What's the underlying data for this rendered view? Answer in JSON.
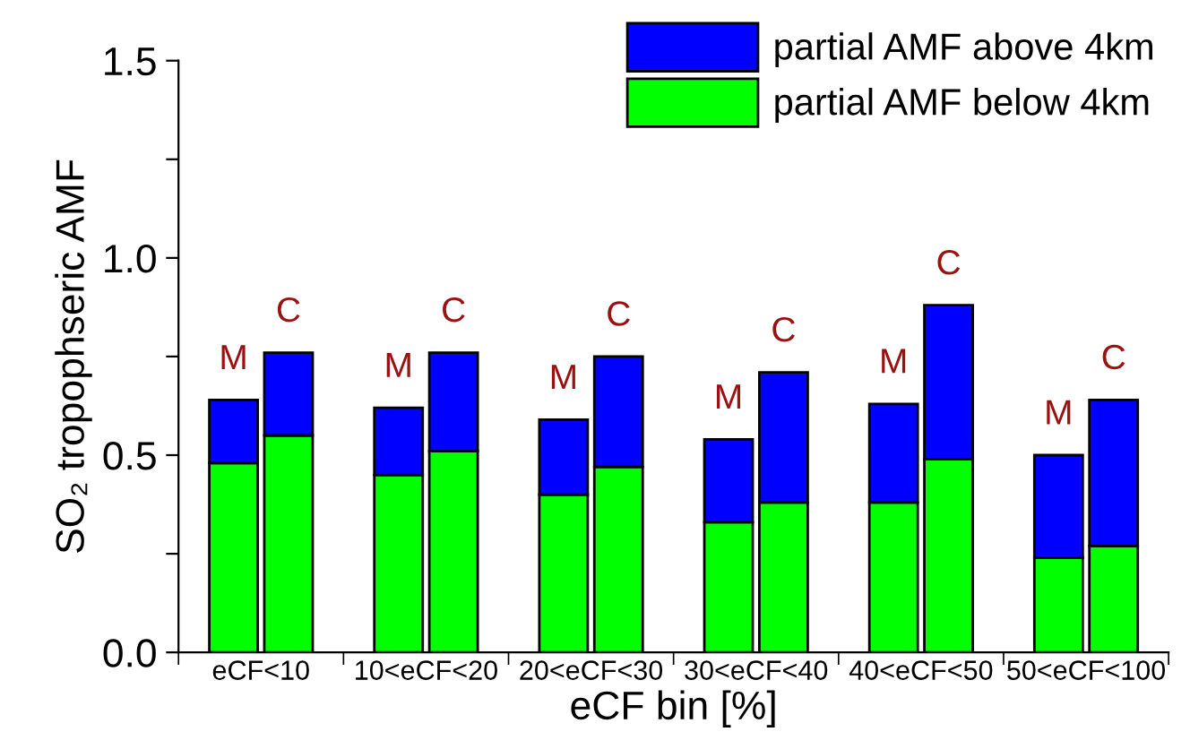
{
  "chart_data": {
    "type": "bar",
    "stacked": true,
    "xlabel": "eCF bin [%]",
    "ylabel": "SO₂ tropophseric AMF",
    "categories": [
      "eCF<10",
      null,
      null,
      "10<eCF<20",
      null,
      null,
      "20<eCF<30",
      null,
      null,
      "30<eCF<40",
      null,
      null,
      "40<eCF<50",
      null,
      null,
      "50<eCF<100",
      null,
      null
    ],
    "series": [
      {
        "name": "partial AMF below 4km",
        "color": "#00ff00",
        "values": [
          0.48,
          0.55,
          null,
          0.45,
          0.51,
          null,
          0.4,
          0.47,
          null,
          0.33,
          0.38,
          null,
          0.38,
          0.49,
          null,
          0.24,
          0.27,
          null
        ]
      },
      {
        "name": "partial AMF above 4km",
        "color": "#0000ff",
        "values": [
          0.16,
          0.21,
          null,
          0.17,
          0.25,
          null,
          0.19,
          0.28,
          null,
          0.21,
          0.33,
          null,
          0.25,
          0.39,
          null,
          0.26,
          0.37,
          null
        ]
      }
    ],
    "annotations": [
      "M",
      "C",
      "M",
      "C",
      "M",
      "C",
      "M",
      "C",
      "M",
      "C",
      "M",
      "C"
    ],
    "ylim": [
      0,
      1.5
    ],
    "yticks": [
      {
        "value": 0,
        "label": "0.0"
      },
      {
        "value": 0.25,
        "label": null
      },
      {
        "value": 0.5,
        "label": "0.5"
      },
      {
        "value": 0.75,
        "label": null
      },
      {
        "value": 1.0,
        "label": "1.0"
      },
      {
        "value": 1.25,
        "label": null
      },
      {
        "value": 1.5,
        "label": "1.5"
      }
    ],
    "grid": false,
    "legend": "top right"
  }
}
